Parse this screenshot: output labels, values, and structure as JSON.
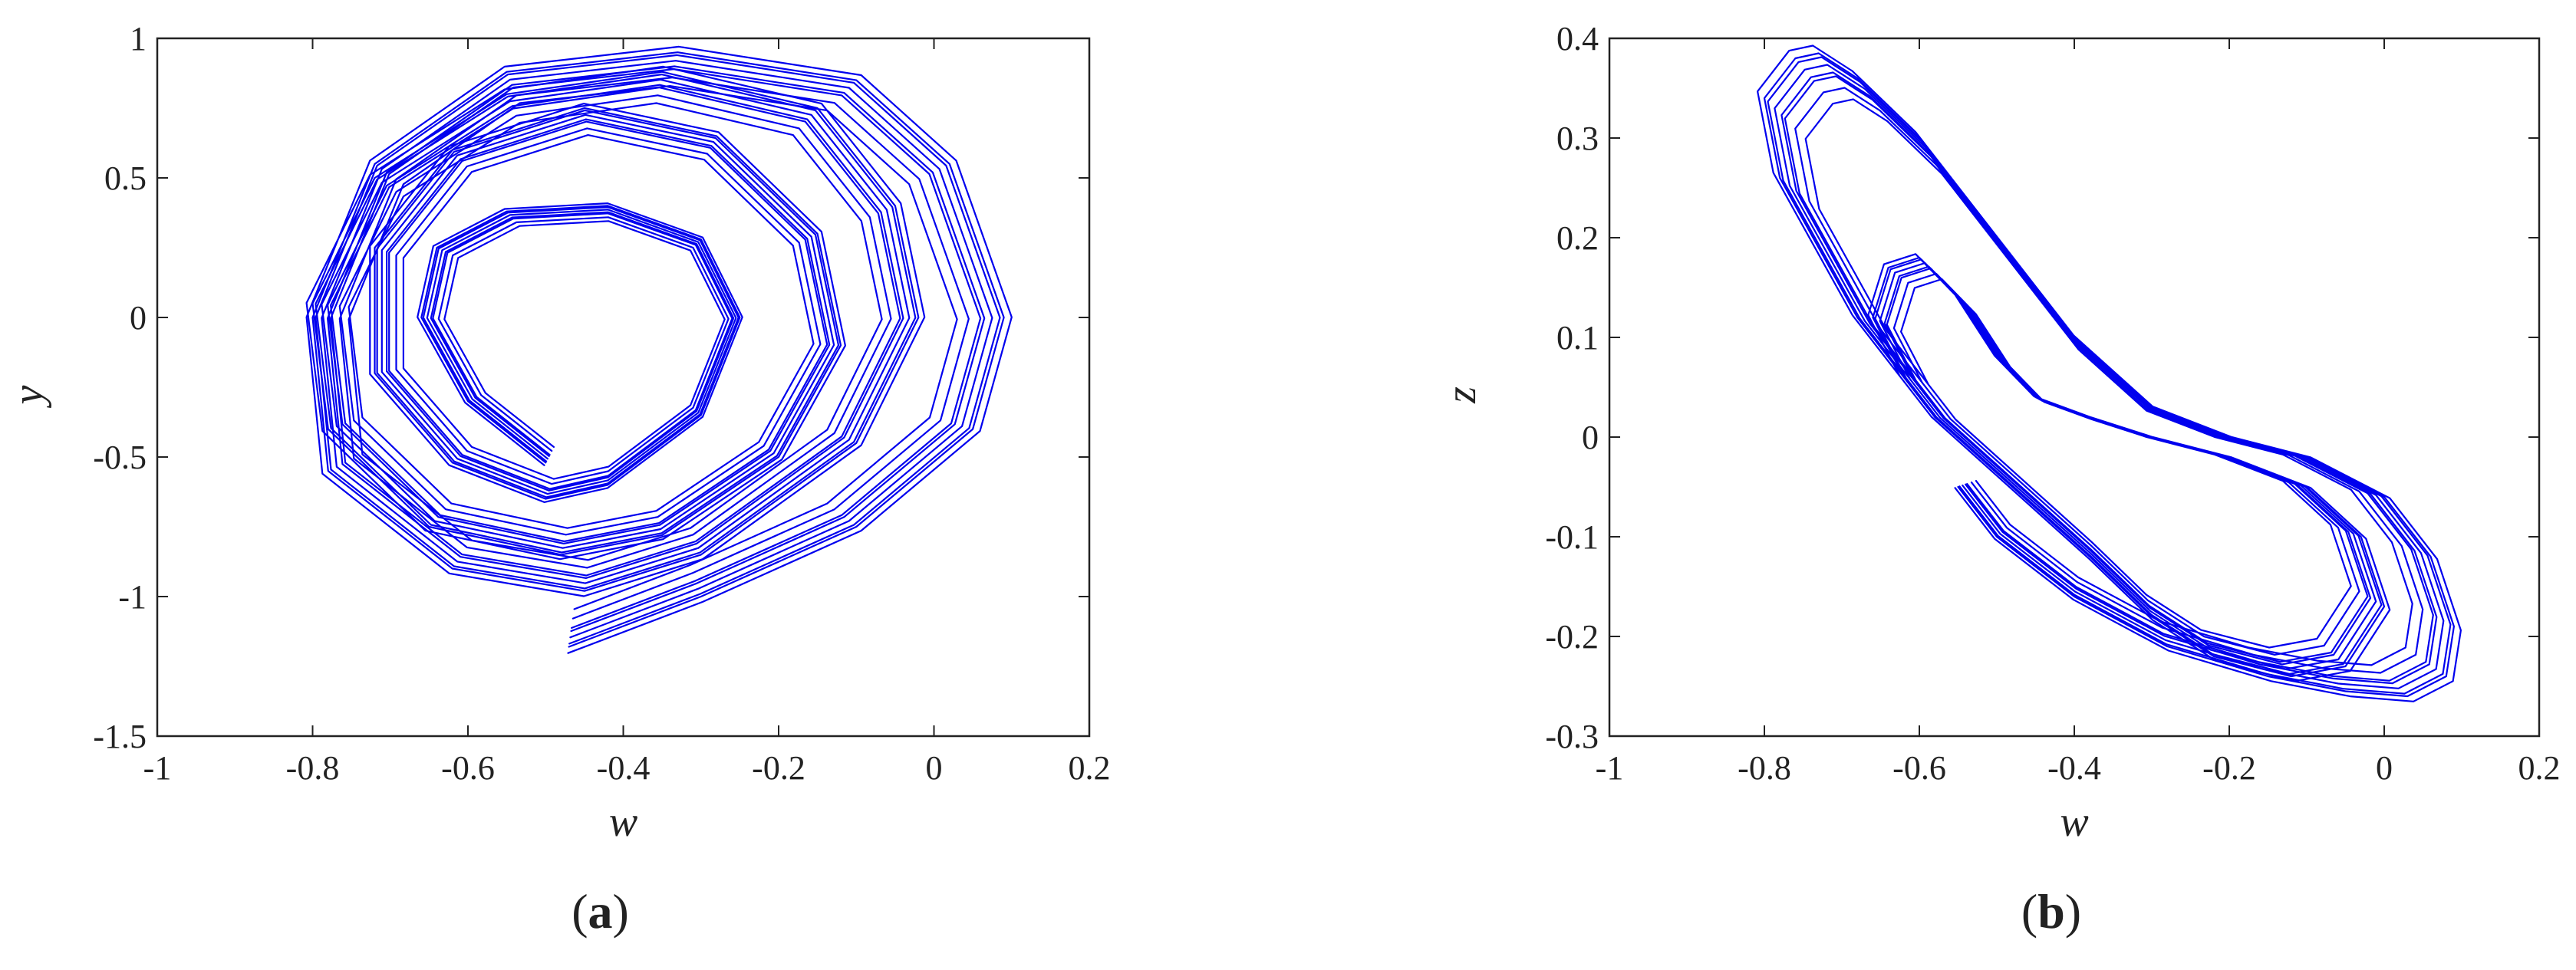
{
  "panels": [
    {
      "tag": "a"
    },
    {
      "tag": "b"
    }
  ],
  "colors": {
    "trajectory": "#0000ee",
    "axis": "#222222"
  },
  "chart_data": [
    {
      "type": "line",
      "title": "",
      "xlabel": "w",
      "ylabel": "y",
      "xlim": [
        -1,
        0.2
      ],
      "ylim": [
        -1.5,
        1
      ],
      "xticks": [
        -1,
        -0.8,
        -0.6,
        -0.4,
        -0.2,
        0,
        0.2
      ],
      "xtick_labels": [
        "-1",
        "-0.8",
        "-0.6",
        "-0.4",
        "-0.2",
        "0",
        "0.2"
      ],
      "yticks": [
        -1.5,
        -1,
        -0.5,
        0,
        0.5,
        1
      ],
      "ytick_labels": [
        "-1.5",
        "-1",
        "-0.5",
        "0",
        "0.5",
        "1"
      ],
      "grid": false,
      "series": [
        {
          "x": [
            -0.5,
            -0.6,
            -0.66,
            -0.64,
            -0.55,
            -0.42,
            -0.3,
            -0.25,
            -0.3,
            -0.42,
            -0.5,
            -0.62,
            -0.72,
            -0.72,
            -0.62,
            -0.45,
            -0.28,
            -0.15,
            -0.12,
            -0.2,
            -0.35,
            -0.48,
            -0.65,
            -0.78,
            -0.8,
            -0.72,
            -0.55,
            -0.35,
            -0.15,
            -0.05,
            -0.02,
            -0.1,
            -0.3,
            -0.45,
            -0.62,
            -0.78,
            -0.8,
            -0.72,
            -0.55,
            -0.33,
            -0.1,
            0.02,
            0.09,
            0.05,
            -0.1,
            -0.3,
            -0.47
          ],
          "y": [
            -0.52,
            -0.3,
            0.0,
            0.25,
            0.38,
            0.4,
            0.28,
            0.0,
            -0.35,
            -0.6,
            -0.65,
            -0.52,
            -0.2,
            0.25,
            0.6,
            0.75,
            0.65,
            0.3,
            -0.1,
            -0.5,
            -0.78,
            -0.85,
            -0.75,
            -0.4,
            0.05,
            0.5,
            0.8,
            0.88,
            0.75,
            0.4,
            0.0,
            -0.45,
            -0.85,
            -0.98,
            -0.9,
            -0.55,
            0.0,
            0.55,
            0.88,
            0.95,
            0.85,
            0.55,
            0.0,
            -0.4,
            -0.75,
            -1.0,
            -1.18
          ]
        }
      ]
    },
    {
      "type": "line",
      "title": "",
      "xlabel": "w",
      "ylabel": "z",
      "xlim": [
        -1,
        0.2
      ],
      "ylim": [
        -0.3,
        0.4
      ],
      "xticks": [
        -1,
        -0.8,
        -0.6,
        -0.4,
        -0.2,
        0,
        0.2
      ],
      "xtick_labels": [
        "-1",
        "-0.8",
        "-0.6",
        "-0.4",
        "-0.2",
        "0",
        "0.2"
      ],
      "yticks": [
        -0.3,
        -0.2,
        -0.1,
        0,
        0.1,
        0.2,
        0.3,
        0.4
      ],
      "ytick_labels": [
        "-0.3",
        "-0.2",
        "-0.1",
        "0",
        "0.1",
        "0.2",
        "0.3",
        "0.4"
      ],
      "grid": false,
      "series": [
        {
          "x": [
            -0.62,
            -0.66,
            -0.64,
            -0.6,
            -0.55,
            -0.5,
            -0.45,
            -0.38,
            -0.3,
            -0.2,
            -0.1,
            -0.03,
            0.0,
            -0.05,
            -0.12,
            -0.22,
            -0.3,
            -0.38,
            -0.48,
            -0.58,
            -0.68,
            -0.78,
            -0.8,
            -0.76,
            -0.73,
            -0.68,
            -0.6,
            -0.5,
            -0.4,
            -0.3,
            -0.2,
            -0.1,
            0.0,
            0.06,
            0.09,
            0.08,
            0.03,
            -0.05,
            -0.15,
            -0.28,
            -0.4,
            -0.5,
            -0.55
          ],
          "y": [
            0.06,
            0.12,
            0.17,
            0.18,
            0.14,
            0.08,
            0.04,
            0.02,
            0.0,
            -0.02,
            -0.05,
            -0.1,
            -0.17,
            -0.23,
            -0.24,
            -0.22,
            -0.18,
            -0.12,
            -0.05,
            0.02,
            0.12,
            0.26,
            0.34,
            0.38,
            0.385,
            0.36,
            0.3,
            0.2,
            0.1,
            0.03,
            0.0,
            -0.02,
            -0.06,
            -0.12,
            -0.19,
            -0.24,
            -0.26,
            -0.255,
            -0.24,
            -0.21,
            -0.16,
            -0.1,
            -0.05
          ]
        }
      ]
    }
  ]
}
